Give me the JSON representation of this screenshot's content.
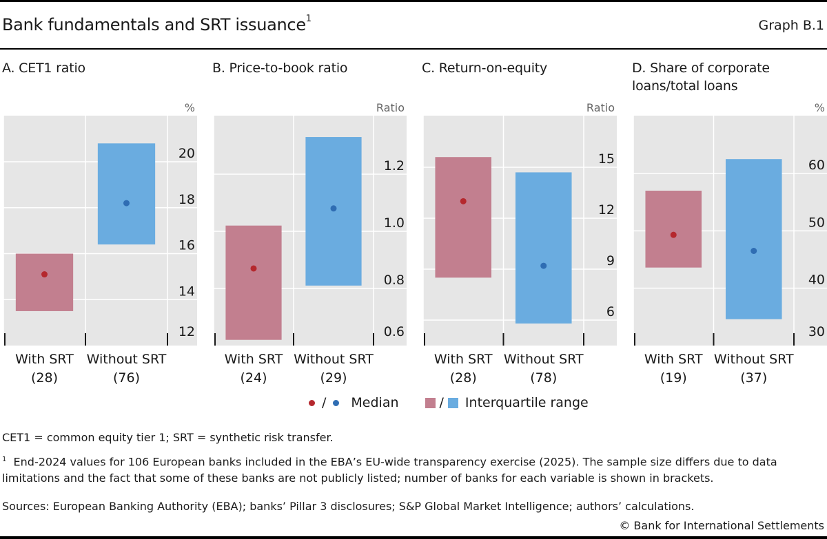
{
  "header": {
    "title": "Bank fundamentals and SRT issuance",
    "title_footnote": "1",
    "graph_number": "Graph B.1"
  },
  "colors": {
    "with_srt_box": "#c27f8f",
    "with_srt_median": "#b5282e",
    "without_srt_box": "#6aace0",
    "without_srt_median": "#2f6db3",
    "plot_bg": "#e6e6e6",
    "grid": "#ffffff"
  },
  "legend": {
    "median_label": "Median",
    "iqr_label": "Interquartile range",
    "separator": "/"
  },
  "chart_data": [
    {
      "type": "range-bar",
      "title": "A. CET1 ratio",
      "unit": "%",
      "ylim": [
        12,
        21
      ],
      "yticks": [
        12,
        14,
        16,
        18,
        20
      ],
      "categories": [
        "With SRT",
        "Without SRT"
      ],
      "counts": [
        "(28)",
        "(76)"
      ],
      "series": [
        {
          "name": "With SRT",
          "q1": 13.5,
          "median": 15.1,
          "q3": 16.0
        },
        {
          "name": "Without SRT",
          "q1": 16.4,
          "median": 18.2,
          "q3": 20.8
        }
      ]
    },
    {
      "type": "range-bar",
      "title": "B. Price-to-book ratio",
      "unit": "Ratio",
      "ylim": [
        0.6,
        1.37
      ],
      "yticks": [
        0.6,
        0.8,
        1.0,
        1.2
      ],
      "tick_decimals": 1,
      "categories": [
        "With SRT",
        "Without SRT"
      ],
      "counts": [
        "(24)",
        "(29)"
      ],
      "series": [
        {
          "name": "With SRT",
          "q1": 0.62,
          "median": 0.87,
          "q3": 1.02
        },
        {
          "name": "Without SRT",
          "q1": 0.81,
          "median": 1.08,
          "q3": 1.33
        }
      ]
    },
    {
      "type": "range-bar",
      "title": "C. Return-on-equity",
      "unit": "Ratio",
      "ylim": [
        4.5,
        18
      ],
      "yticks": [
        6,
        9,
        12,
        15
      ],
      "categories": [
        "With SRT",
        "Without SRT"
      ],
      "counts": [
        "(28)",
        "(78)"
      ],
      "series": [
        {
          "name": "With SRT",
          "q1": 8.5,
          "median": 13.0,
          "q3": 15.6
        },
        {
          "name": "Without SRT",
          "q1": 5.8,
          "median": 9.2,
          "q3": 14.7
        }
      ]
    },
    {
      "type": "range-bar",
      "title": "D. Share of corporate loans/total loans",
      "title_lines": [
        "D. Share of corporate",
        "loans/total loans"
      ],
      "unit": "%",
      "ylim": [
        30,
        70
      ],
      "yticks": [
        30,
        40,
        50,
        60
      ],
      "categories": [
        "With SRT",
        "Without SRT"
      ],
      "counts": [
        "(19)",
        "(37)"
      ],
      "series": [
        {
          "name": "With SRT",
          "q1": 43.6,
          "median": 49.3,
          "q3": 57.0
        },
        {
          "name": "Without SRT",
          "q1": 34.6,
          "median": 46.5,
          "q3": 62.5
        }
      ]
    }
  ],
  "notes": {
    "abbreviations": "CET1 = common equity tier 1; SRT = synthetic risk transfer.",
    "footnote_marker": "1",
    "footnote_line1": "End-2024 values for 106 European banks included in the EBA’s EU-wide transparency exercise (2025). The sample size differs due to data",
    "footnote_line2": "limitations and the fact that some of these banks are not publicly listed; number of banks for each variable is shown in brackets.",
    "sources": "Sources: European Banking Authority (EBA); banks’ Pillar 3 disclosures; S&P Global Market Intelligence; authors’ calculations.",
    "copyright": "© Bank for International Settlements"
  }
}
